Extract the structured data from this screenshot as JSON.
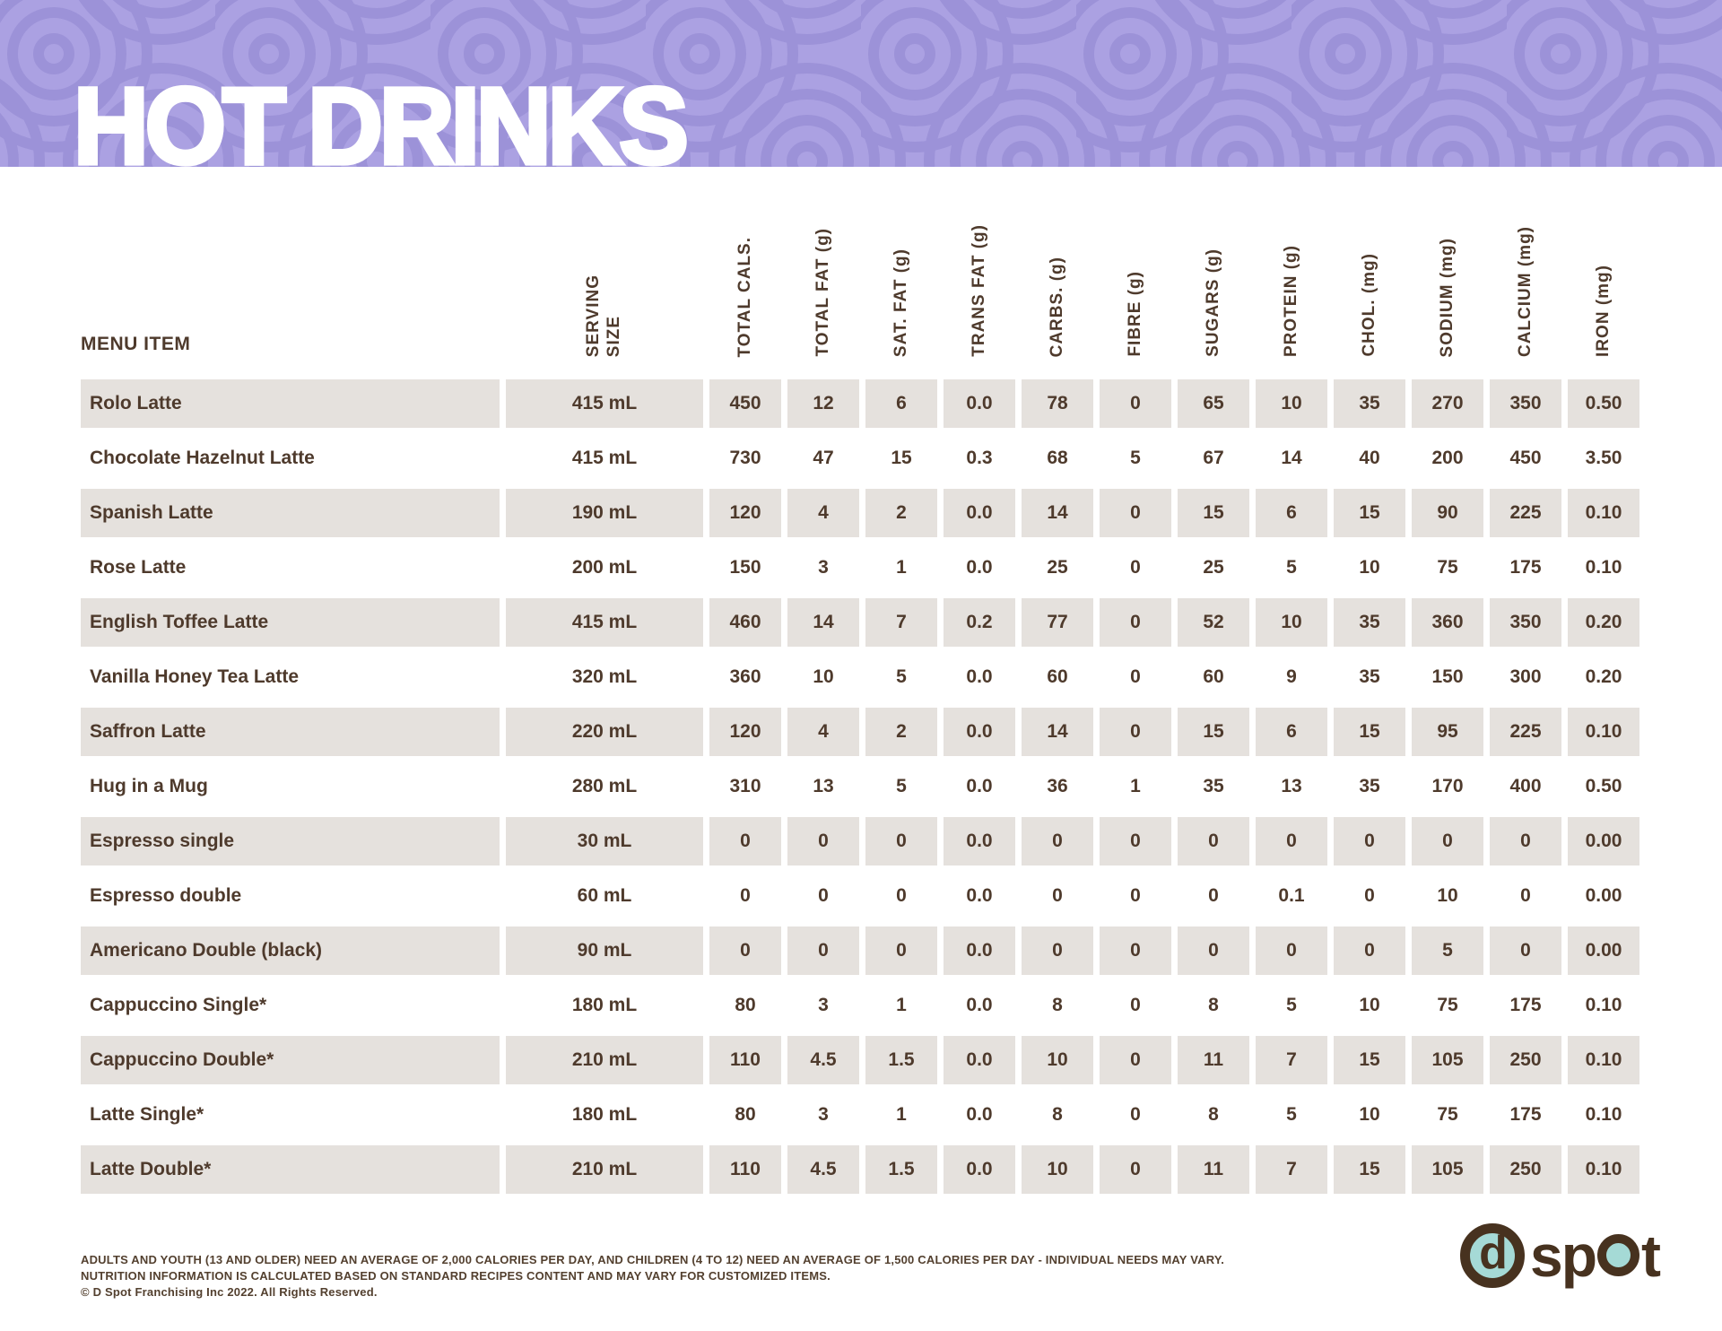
{
  "title": "HOT DRINKS",
  "table": {
    "menu_header": "MENU ITEM",
    "column_headers": [
      "SERVING\nSIZE",
      "TOTAL CALS.",
      "TOTAL FAT (g)",
      "SAT. FAT (g)",
      "TRANS FAT (g)",
      "CARBS. (g)",
      "FIBRE (g)",
      "SUGARS (g)",
      "PROTEIN (g)",
      "CHOL. (mg)",
      "SODIUM (mg)",
      "CALCIUM (mg)",
      "IRON (mg)"
    ],
    "rows": [
      {
        "item": "Rolo Latte",
        "serving": "415 mL",
        "values": [
          "450",
          "12",
          "6",
          "0.0",
          "78",
          "0",
          "65",
          "10",
          "35",
          "270",
          "350",
          "0.50"
        ]
      },
      {
        "item": "Chocolate Hazelnut Latte",
        "serving": "415 mL",
        "values": [
          "730",
          "47",
          "15",
          "0.3",
          "68",
          "5",
          "67",
          "14",
          "40",
          "200",
          "450",
          "3.50"
        ]
      },
      {
        "item": "Spanish Latte",
        "serving": "190 mL",
        "values": [
          "120",
          "4",
          "2",
          "0.0",
          "14",
          "0",
          "15",
          "6",
          "15",
          "90",
          "225",
          "0.10"
        ]
      },
      {
        "item": "Rose Latte",
        "serving": "200 mL",
        "values": [
          "150",
          "3",
          "1",
          "0.0",
          "25",
          "0",
          "25",
          "5",
          "10",
          "75",
          "175",
          "0.10"
        ]
      },
      {
        "item": "English Toffee Latte",
        "serving": "415 mL",
        "values": [
          "460",
          "14",
          "7",
          "0.2",
          "77",
          "0",
          "52",
          "10",
          "35",
          "360",
          "350",
          "0.20"
        ]
      },
      {
        "item": "Vanilla Honey Tea Latte",
        "serving": "320 mL",
        "values": [
          "360",
          "10",
          "5",
          "0.0",
          "60",
          "0",
          "60",
          "9",
          "35",
          "150",
          "300",
          "0.20"
        ]
      },
      {
        "item": "Saffron Latte",
        "serving": "220 mL",
        "values": [
          "120",
          "4",
          "2",
          "0.0",
          "14",
          "0",
          "15",
          "6",
          "15",
          "95",
          "225",
          "0.10"
        ]
      },
      {
        "item": "Hug in a Mug",
        "serving": "280 mL",
        "values": [
          "310",
          "13",
          "5",
          "0.0",
          "36",
          "1",
          "35",
          "13",
          "35",
          "170",
          "400",
          "0.50"
        ]
      },
      {
        "item": "Espresso single",
        "serving": "30 mL",
        "values": [
          "0",
          "0",
          "0",
          "0.0",
          "0",
          "0",
          "0",
          "0",
          "0",
          "0",
          "0",
          "0.00"
        ]
      },
      {
        "item": "Espresso double",
        "serving": "60 mL",
        "values": [
          "0",
          "0",
          "0",
          "0.0",
          "0",
          "0",
          "0",
          "0.1",
          "0",
          "10",
          "0",
          "0.00"
        ]
      },
      {
        "item": "Americano Double (black)",
        "serving": "90 mL",
        "values": [
          "0",
          "0",
          "0",
          "0.0",
          "0",
          "0",
          "0",
          "0",
          "0",
          "5",
          "0",
          "0.00"
        ]
      },
      {
        "item": "Cappuccino Single*",
        "serving": "180 mL",
        "values": [
          "80",
          "3",
          "1",
          "0.0",
          "8",
          "0",
          "8",
          "5",
          "10",
          "75",
          "175",
          "0.10"
        ]
      },
      {
        "item": "Cappuccino Double*",
        "serving": "210 mL",
        "values": [
          "110",
          "4.5",
          "1.5",
          "0.0",
          "10",
          "0",
          "11",
          "7",
          "15",
          "105",
          "250",
          "0.10"
        ]
      },
      {
        "item": "Latte Single*",
        "serving": "180 mL",
        "values": [
          "80",
          "3",
          "1",
          "0.0",
          "8",
          "0",
          "8",
          "5",
          "10",
          "75",
          "175",
          "0.10"
        ]
      },
      {
        "item": "Latte Double*",
        "serving": "210 mL",
        "values": [
          "110",
          "4.5",
          "1.5",
          "0.0",
          "10",
          "0",
          "11",
          "7",
          "15",
          "105",
          "250",
          "0.10"
        ]
      }
    ]
  },
  "footer": {
    "line1": "ADULTS AND YOUTH (13 AND OLDER) NEED AN AVERAGE OF 2,000 CALORIES PER DAY, AND CHILDREN (4 TO 12) NEED AN AVERAGE OF 1,500 CALORIES PER DAY - INDIVIDUAL NEEDS MAY VARY.",
    "line2": "NUTRITION INFORMATION IS CALCULATED BASED ON STANDARD RECIPES CONTENT AND MAY VARY FOR CUSTOMIZED ITEMS.",
    "line3": "© D Spot Franchising Inc 2022. All Rights Reserved.",
    "brand_d": "d",
    "brand_s": "s",
    "brand_p": "p",
    "brand_t": "t"
  },
  "colors": {
    "band_purple": "#aba1e2",
    "swirl_purple": "#9c92d8",
    "row_gray": "#e5e1dd",
    "text_brown": "#4e3a2c",
    "logo_brown": "#47321f",
    "logo_teal": "#a5dad6",
    "title_white": "#ffffff"
  }
}
